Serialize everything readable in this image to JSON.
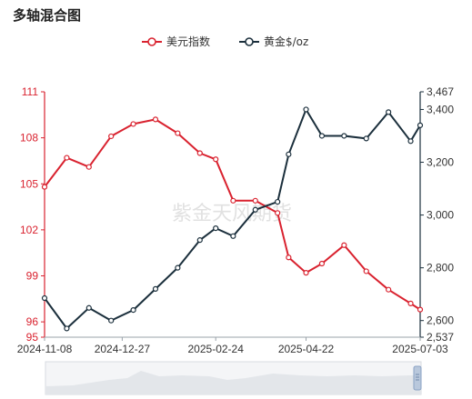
{
  "title": "多轴混合图",
  "watermark": "紫金天风期货",
  "chart_data": {
    "type": "line",
    "title": "多轴混合图",
    "x_ticks": [
      "2024-11-08",
      "2024-12-27",
      "2025-02-24",
      "2025-04-22",
      "2025-07-03"
    ],
    "x": [
      "2024-11-08",
      "2024-11-22",
      "2024-12-06",
      "2024-12-20",
      "2025-01-03",
      "2025-01-17",
      "2025-01-31",
      "2025-02-14",
      "2025-02-24",
      "2025-03-07",
      "2025-03-21",
      "2025-04-04",
      "2025-04-11",
      "2025-04-22",
      "2025-05-02",
      "2025-05-16",
      "2025-05-30",
      "2025-06-13",
      "2025-06-27",
      "2025-07-03"
    ],
    "y_left": {
      "ticks": [
        "95",
        "96",
        "99",
        "102",
        "105",
        "108",
        "111"
      ],
      "range": [
        95,
        111
      ],
      "color": "#d9222f"
    },
    "y_right": {
      "ticks": [
        "2,537",
        "2,600",
        "2,800",
        "3,000",
        "3,200",
        "3,400",
        "3,467"
      ],
      "range": [
        2537,
        3467
      ],
      "color": "#1b2f3c"
    },
    "legend_position": "top-center",
    "grid": false,
    "series": [
      {
        "name": "美元指数",
        "axis": "left",
        "color": "#d9222f",
        "values": [
          104.8,
          106.7,
          106.1,
          108.1,
          108.9,
          109.2,
          108.3,
          107.0,
          106.6,
          103.9,
          103.9,
          103.1,
          100.2,
          99.2,
          99.8,
          101.0,
          99.3,
          98.1,
          97.2,
          96.8
        ]
      },
      {
        "name": "黄金$/oz",
        "axis": "right",
        "color": "#1b2f3c",
        "values": [
          2685,
          2570,
          2648,
          2600,
          2640,
          2720,
          2800,
          2905,
          2950,
          2920,
          3020,
          3050,
          3230,
          3400,
          3300,
          3300,
          3290,
          3390,
          3280,
          3340
        ]
      }
    ]
  },
  "slider_label": ""
}
